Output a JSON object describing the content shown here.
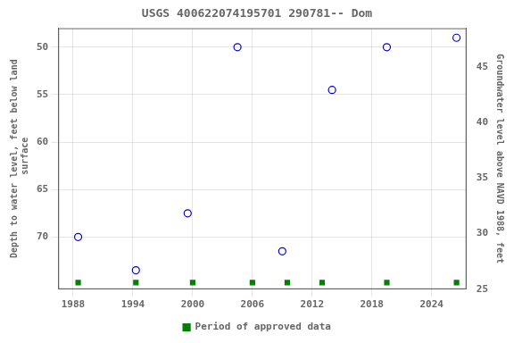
{
  "chart_data": {
    "type": "scatter",
    "title": "USGS 400622074195701 290781-- Dom",
    "ylabel": "Depth to water level, feet below land\n surface",
    "y2label": "Groundwater level above NAVD 1988, feet",
    "series": [
      {
        "x": [
          1988.5,
          1994.3,
          1999.5,
          2004.5,
          2009.0,
          2014.0,
          2019.5,
          2026.5
        ],
        "values": [
          70.0,
          73.5,
          67.5,
          50.0,
          71.5,
          54.5,
          50.0,
          49.0
        ],
        "color": "#0000cc",
        "marker": "circle-open"
      },
      {
        "name": "Period of approved data",
        "x": [
          1988.5,
          1994.3,
          2000,
          2006,
          2009.5,
          2013,
          2019.5,
          2026.5
        ],
        "values": [
          74.8,
          74.8,
          74.8,
          74.8,
          74.8,
          74.8,
          74.8,
          74.8
        ],
        "color": "#008000",
        "marker": "square"
      }
    ],
    "xlim": [
      1986.5,
      2027.5
    ],
    "xticks": [
      1988,
      1994,
      2000,
      2006,
      2012,
      2018,
      2024
    ],
    "ylim": [
      75.5,
      48.0
    ],
    "yticks": [
      50,
      55,
      60,
      65,
      70
    ],
    "y2lim": [
      25.0,
      48.5
    ],
    "y2ticks": [
      45,
      40,
      35,
      30,
      25
    ],
    "grid": true,
    "legend": "bottom"
  }
}
